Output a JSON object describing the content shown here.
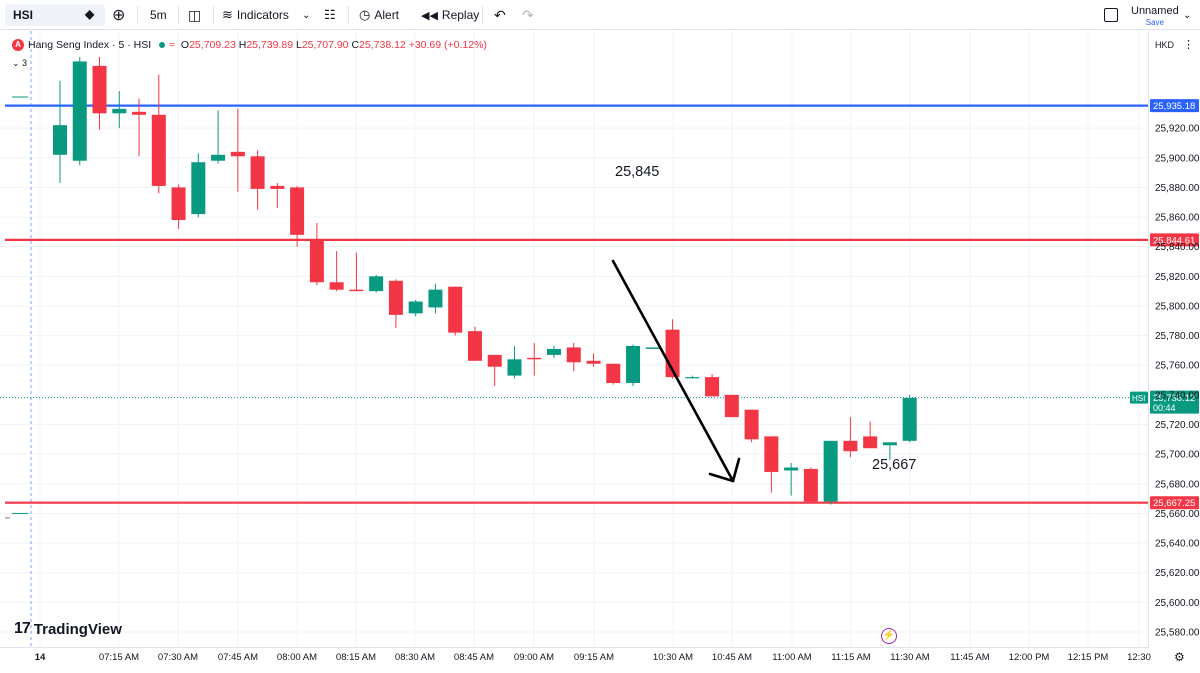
{
  "toolbar": {
    "symbol": "HSI",
    "interval": "5m",
    "indicators_label": "Indicators",
    "alert_label": "Alert",
    "replay_label": "Replay",
    "layout_name": "Unnamed",
    "save_label": "Save"
  },
  "legend": {
    "title": "Hang Seng Index · 5 · HSI",
    "logo_letter": "A",
    "open_label": "O",
    "open": "25,709.23",
    "high_label": "H",
    "high": "25,739.89",
    "low_label": "L",
    "low": "25,707.90",
    "close_label": "C",
    "close": "25,738.12",
    "change": "+30.69 (+0.12%)"
  },
  "collapsed_count": "3",
  "currency": "HKD",
  "watermark": "TradingView",
  "colors": {
    "up": "#089981",
    "down": "#f23645",
    "hline_blue": "#2962ff",
    "hline_red": "#f23645",
    "grid": "#f0f3fa"
  },
  "chart_data": {
    "type": "candlestick",
    "symbol": "HSI",
    "interval": "5m",
    "ylim": [
      25570,
      25965
    ],
    "y_ticks": [
      "25,580.00",
      "25,600.00",
      "25,620.00",
      "25,640.00",
      "25,660.00",
      "25,680.00",
      "25,700.00",
      "25,720.00",
      "25,740.00",
      "25,760.00",
      "25,780.00",
      "25,800.00",
      "25,820.00",
      "25,840.00",
      "25,860.00",
      "25,880.00",
      "25,900.00",
      "25,920.00"
    ],
    "x_ticks": [
      "14",
      "07:15 AM",
      "07:30 AM",
      "07:45 AM",
      "08:00 AM",
      "08:15 AM",
      "08:30 AM",
      "08:45 AM",
      "09:00 AM",
      "09:15 AM",
      "10:30 AM",
      "10:45 AM",
      "11:00 AM",
      "11:15 AM",
      "11:30 AM",
      "11:45 AM",
      "12:00 PM",
      "12:15 PM",
      "12:30"
    ],
    "candles": [
      {
        "o": 25902,
        "h": 25952,
        "l": 25883,
        "c": 25922
      },
      {
        "o": 25898,
        "h": 25968,
        "l": 25895,
        "c": 25965
      },
      {
        "o": 25962,
        "h": 25968,
        "l": 25919,
        "c": 25930
      },
      {
        "o": 25930,
        "h": 25945,
        "l": 25920,
        "c": 25933
      },
      {
        "o": 25931,
        "h": 25940,
        "l": 25901,
        "c": 25929
      },
      {
        "o": 25929,
        "h": 25956,
        "l": 25876,
        "c": 25881
      },
      {
        "o": 25880,
        "h": 25882,
        "l": 25852,
        "c": 25858
      },
      {
        "o": 25862,
        "h": 25903,
        "l": 25860,
        "c": 25897
      },
      {
        "o": 25898,
        "h": 25932,
        "l": 25896,
        "c": 25902
      },
      {
        "o": 25904,
        "h": 25933,
        "l": 25877,
        "c": 25901
      },
      {
        "o": 25901,
        "h": 25905,
        "l": 25865,
        "c": 25879
      },
      {
        "o": 25881,
        "h": 25883,
        "l": 25866,
        "c": 25879
      },
      {
        "o": 25880,
        "h": 25881,
        "l": 25840,
        "c": 25848
      },
      {
        "o": 25845,
        "h": 25856,
        "l": 25814,
        "c": 25816
      },
      {
        "o": 25816,
        "h": 25837,
        "l": 25810,
        "c": 25811
      },
      {
        "o": 25811,
        "h": 25836,
        "l": 25810,
        "c": 25810
      },
      {
        "o": 25810,
        "h": 25821,
        "l": 25809,
        "c": 25820
      },
      {
        "o": 25817,
        "h": 25818,
        "l": 25785,
        "c": 25794
      },
      {
        "o": 25795,
        "h": 25804,
        "l": 25793,
        "c": 25803
      },
      {
        "o": 25799,
        "h": 25815,
        "l": 25795,
        "c": 25811
      },
      {
        "o": 25813,
        "h": 25813,
        "l": 25780,
        "c": 25782
      },
      {
        "o": 25783,
        "h": 25786,
        "l": 25763,
        "c": 25763
      },
      {
        "o": 25767,
        "h": 25767,
        "l": 25746,
        "c": 25759
      },
      {
        "o": 25753,
        "h": 25773,
        "l": 25751,
        "c": 25764
      },
      {
        "o": 25765,
        "h": 25775,
        "l": 25753,
        "c": 25764
      },
      {
        "o": 25767,
        "h": 25773,
        "l": 25765,
        "c": 25771
      },
      {
        "o": 25772,
        "h": 25775,
        "l": 25756,
        "c": 25762
      },
      {
        "o": 25763,
        "h": 25768,
        "l": 25759,
        "c": 25761
      },
      {
        "o": 25761,
        "h": 25761,
        "l": 25747,
        "c": 25748
      },
      {
        "o": 25748,
        "h": 25774,
        "l": 25746,
        "c": 25773
      },
      {
        "o": 25771,
        "h": 25772,
        "l": 25771,
        "c": 25772
      },
      {
        "o": 25784,
        "h": 25791,
        "l": 25751,
        "c": 25752
      },
      {
        "o": 25752,
        "h": 25753,
        "l": 25751,
        "c": 25752
      },
      {
        "o": 25752,
        "h": 25754,
        "l": 25740,
        "c": 25739
      },
      {
        "o": 25740,
        "h": 25740,
        "l": 25728,
        "c": 25725
      },
      {
        "o": 25730,
        "h": 25730,
        "l": 25708,
        "c": 25710
      },
      {
        "o": 25712,
        "h": 25711,
        "l": 25674,
        "c": 25688
      },
      {
        "o": 25689,
        "h": 25694,
        "l": 25672,
        "c": 25691
      },
      {
        "o": 25690,
        "h": 25691,
        "l": 25667,
        "c": 25668
      },
      {
        "o": 25668,
        "h": 25709,
        "l": 25666,
        "c": 25709
      },
      {
        "o": 25709,
        "h": 25725,
        "l": 25698,
        "c": 25702
      },
      {
        "o": 25712,
        "h": 25722,
        "l": 25704,
        "c": 25704
      },
      {
        "o": 25706,
        "h": 25708,
        "l": 25696,
        "c": 25708
      },
      {
        "o": 25709,
        "h": 25740,
        "l": 25708,
        "c": 25738
      }
    ],
    "horizontal_lines": [
      {
        "price": 25935.18,
        "label": "25,935.18",
        "color": "#2962ff"
      },
      {
        "price": 25844.61,
        "label": "25,844.61",
        "color": "#f23645"
      },
      {
        "price": 25667.25,
        "label": "25,667.25",
        "color": "#f23645"
      }
    ],
    "annotations": [
      {
        "text": "25,845"
      },
      {
        "text": "25,667"
      }
    ],
    "last_price": {
      "symbol": "HSI",
      "price": "25,738.12",
      "countdown": "00:44",
      "value": 25738.12
    }
  }
}
